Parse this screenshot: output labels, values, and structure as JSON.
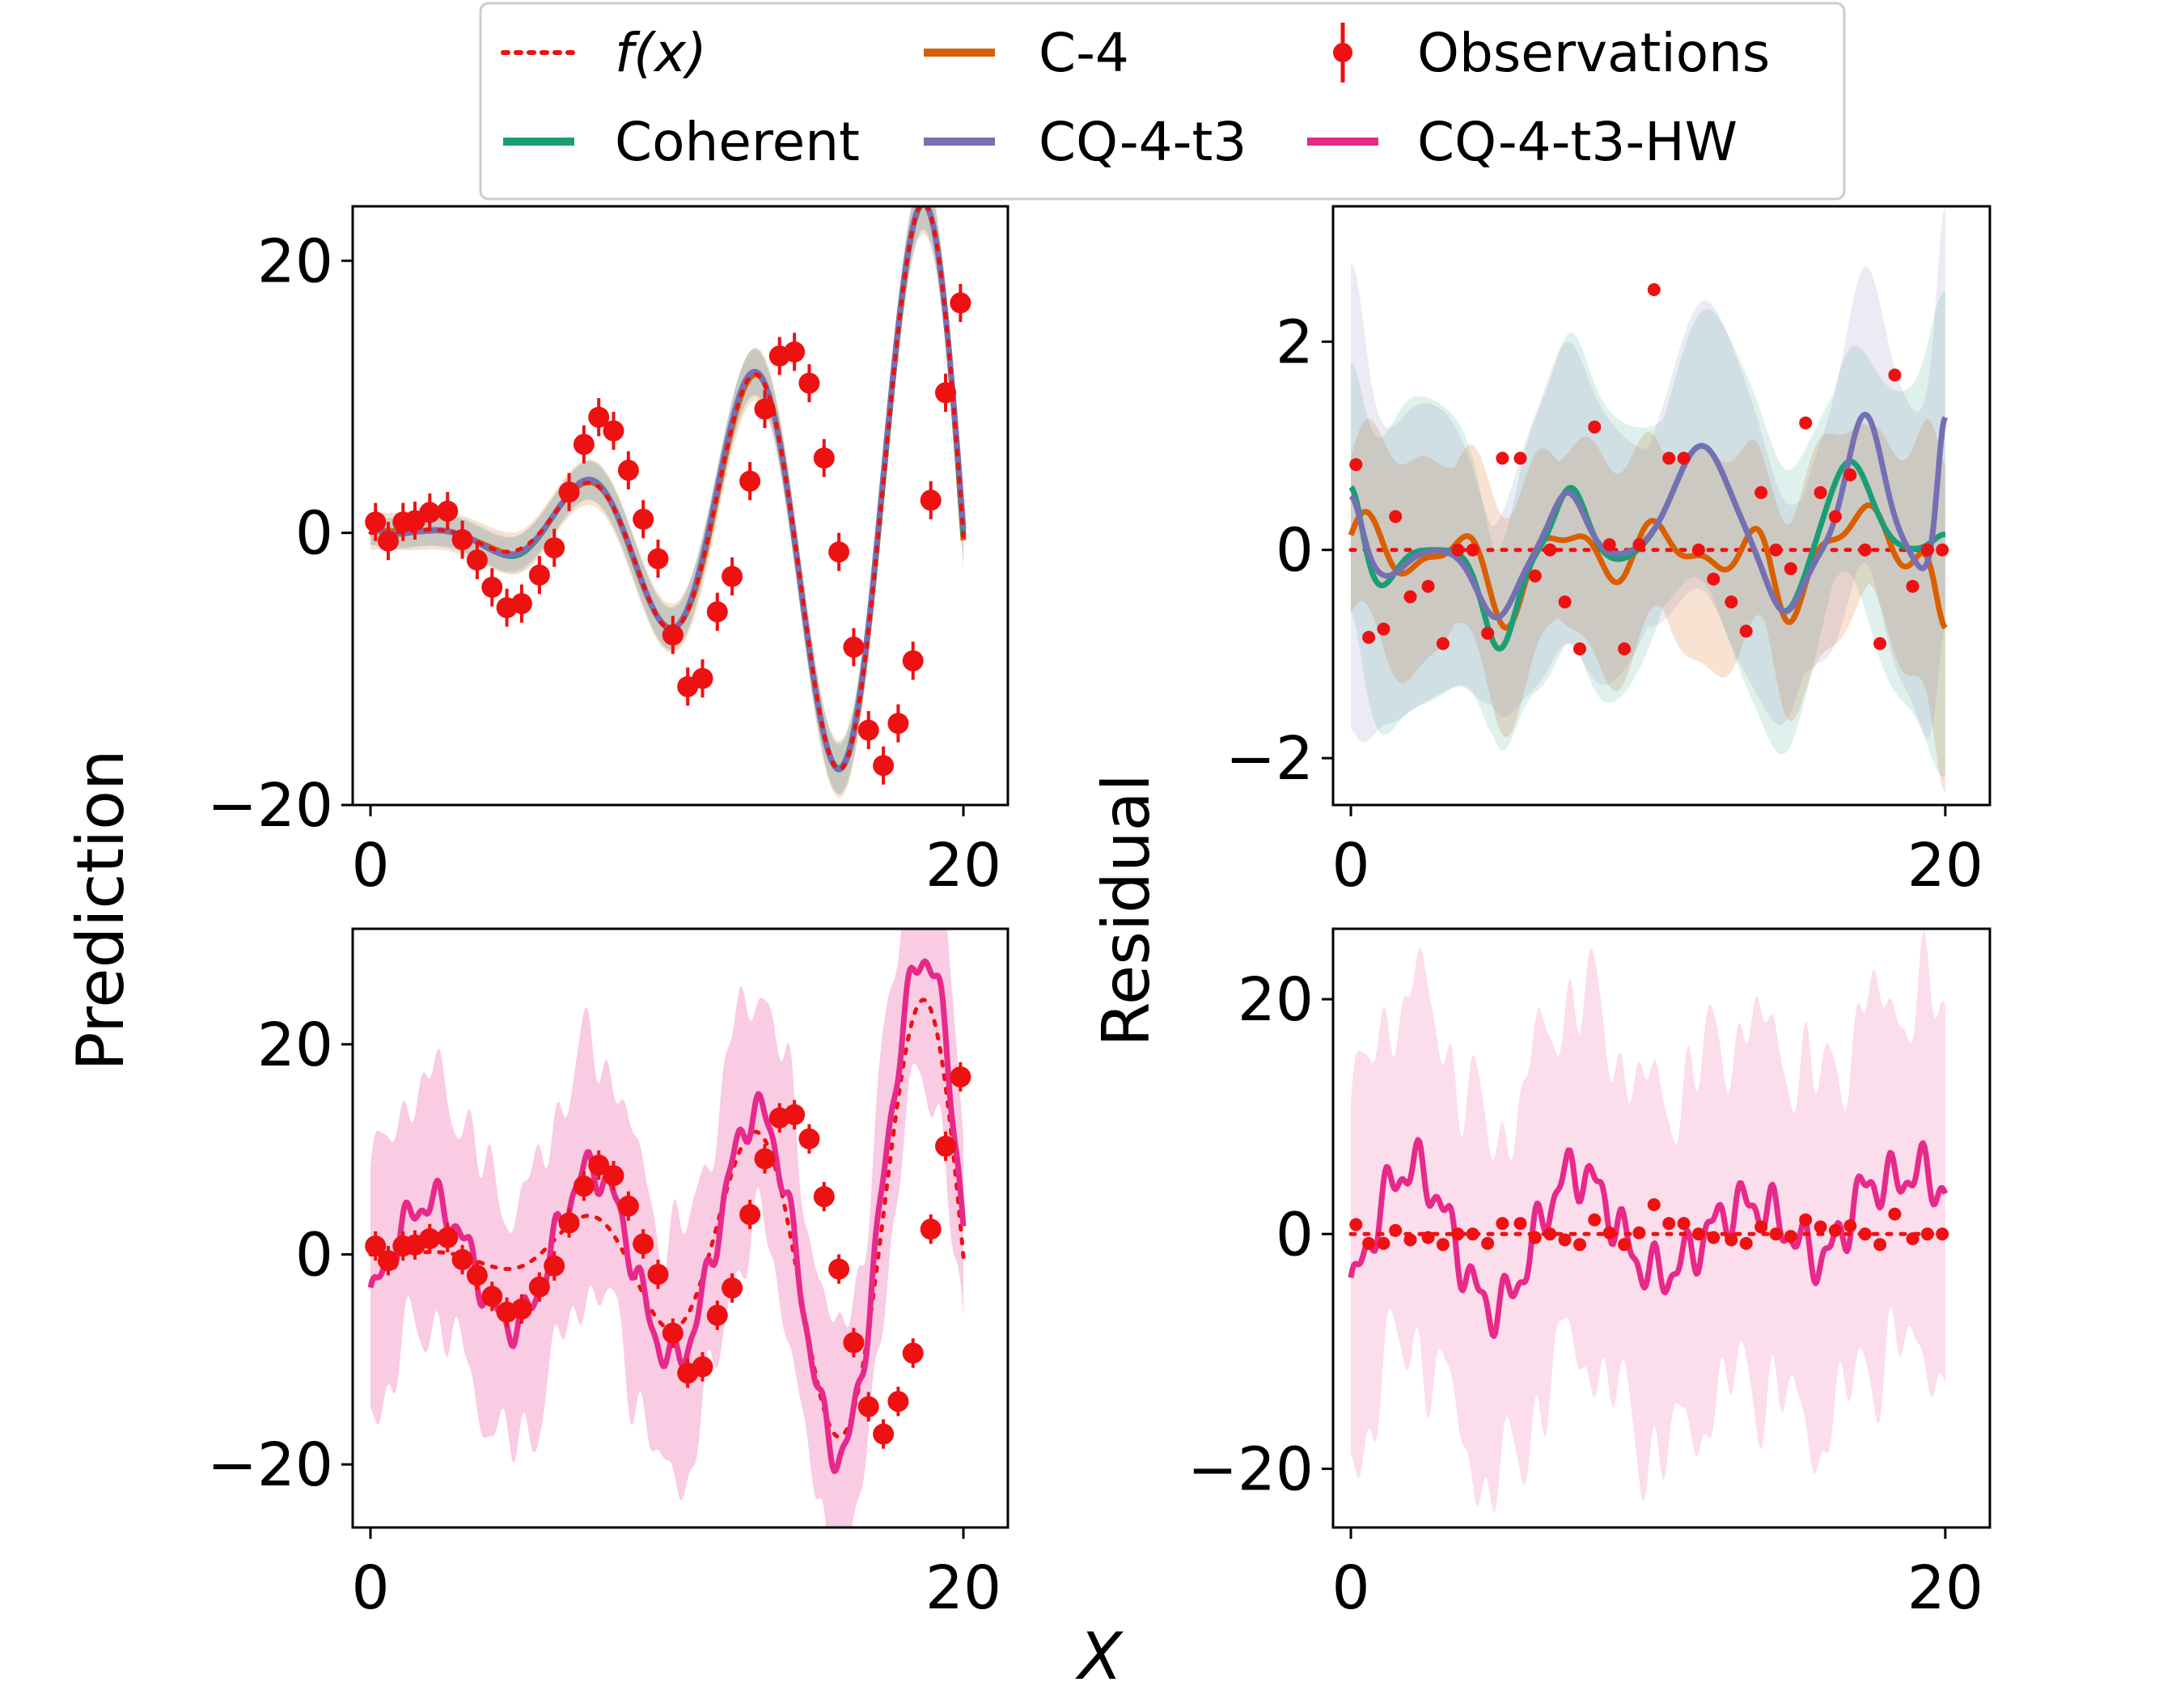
{
  "figure": {
    "ylabel_left": "Prediction",
    "ylabel_right": "Residual",
    "xlabel": "X"
  },
  "legend": {
    "items": [
      {
        "label": "f(x)",
        "kind": "dotted",
        "color": "#ee1111"
      },
      {
        "label": "C-4",
        "kind": "line",
        "color": "#d95f02"
      },
      {
        "label": "Observations",
        "kind": "errorbar",
        "color": "#ee1111"
      },
      {
        "label": "Coherent",
        "kind": "line",
        "color": "#1b9e77"
      },
      {
        "label": "CQ-4-t3",
        "kind": "line",
        "color": "#7570b3"
      },
      {
        "label": "CQ-4-t3-HW",
        "kind": "line",
        "color": "#e7298a"
      }
    ]
  },
  "chart_data": [
    {
      "id": "top-left",
      "type": "line",
      "xlim": [
        -0.6,
        21.5
      ],
      "ylim": [
        -20,
        24
      ],
      "xticks": [
        0,
        20
      ],
      "yticks": [
        -20,
        0,
        20
      ],
      "series": [
        {
          "name": "C-4",
          "color": "#d95f02",
          "band": true
        },
        {
          "name": "Coherent",
          "color": "#1b9e77",
          "band": true
        },
        {
          "name": "CQ-4-t3",
          "color": "#7570b3",
          "band": true
        }
      ],
      "truth": "f(x)",
      "observations": {
        "x": [
          0.17,
          0.6,
          1.1,
          1.5,
          2.0,
          2.6,
          3.1,
          3.6,
          4.1,
          4.6,
          5.1,
          5.7,
          6.2,
          6.7,
          7.2,
          7.7,
          8.2,
          8.7,
          9.2,
          9.7,
          10.2,
          10.7,
          11.2,
          11.7,
          12.2,
          12.8,
          13.3,
          13.8,
          14.3,
          14.8,
          15.3,
          15.8,
          16.3,
          16.8,
          17.3,
          17.8,
          18.3,
          18.9,
          19.4,
          19.9
        ],
        "y": [
          0.8,
          -0.6,
          0.8,
          0.9,
          1.5,
          1.6,
          -0.5,
          -2.0,
          -4.0,
          -5.5,
          -5.2,
          -3.1,
          -1.1,
          3.0,
          6.5,
          8.5,
          7.5,
          4.6,
          1.0,
          -1.9,
          -7.5,
          -11.3,
          -10.7,
          -5.8,
          -3.2,
          3.8,
          9.1,
          13.0,
          13.3,
          11.0,
          5.5,
          -1.4,
          -8.4,
          -14.5,
          -17.1,
          -14.0,
          -9.4,
          2.4,
          10.3,
          16.9
        ]
      }
    },
    {
      "id": "top-right",
      "type": "line",
      "xlim": [
        -0.6,
        21.5
      ],
      "ylim": [
        -2.45,
        3.3
      ],
      "xticks": [
        0,
        20
      ],
      "yticks": [
        -2,
        0,
        2
      ],
      "series": [
        {
          "name": "C-4",
          "color": "#d95f02",
          "band": true
        },
        {
          "name": "Coherent",
          "color": "#1b9e77",
          "band": true
        },
        {
          "name": "CQ-4-t3",
          "color": "#7570b3",
          "band": true
        }
      ],
      "truth": "f(x)",
      "observations": {
        "x": [
          0.17,
          0.6,
          1.1,
          1.5,
          2.0,
          2.6,
          3.1,
          3.6,
          4.1,
          4.6,
          5.1,
          5.7,
          6.2,
          6.7,
          7.2,
          7.7,
          8.2,
          8.7,
          9.2,
          9.7,
          10.2,
          10.7,
          11.2,
          11.7,
          12.2,
          12.8,
          13.3,
          13.8,
          14.3,
          14.8,
          15.3,
          15.8,
          16.3,
          16.8,
          17.3,
          17.8,
          18.3,
          18.9,
          19.4,
          19.9
        ],
        "y": [
          0.82,
          -0.84,
          -0.76,
          0.32,
          -0.45,
          -0.35,
          -0.9,
          0.0,
          0.0,
          -0.8,
          0.88,
          0.88,
          -0.25,
          0.0,
          -0.5,
          -0.95,
          1.18,
          0.05,
          -0.95,
          0.05,
          2.5,
          0.88,
          0.88,
          0.0,
          -0.28,
          -0.5,
          -0.78,
          0.55,
          0.0,
          -0.18,
          1.22,
          0.55,
          0.32,
          0.72,
          0.0,
          -0.9,
          1.68,
          -0.35,
          0.0,
          0.0
        ]
      }
    },
    {
      "id": "bottom-left",
      "type": "line",
      "xlim": [
        -0.6,
        21.5
      ],
      "ylim": [
        -26,
        31
      ],
      "xticks": [
        0,
        20
      ],
      "yticks": [
        -20,
        0,
        20
      ],
      "series": [
        {
          "name": "CQ-4-t3-HW",
          "color": "#e7298a",
          "band": true
        }
      ],
      "truth": "f(x)",
      "observations": {
        "x": [
          0.17,
          0.6,
          1.1,
          1.5,
          2.0,
          2.6,
          3.1,
          3.6,
          4.1,
          4.6,
          5.1,
          5.7,
          6.2,
          6.7,
          7.2,
          7.7,
          8.2,
          8.7,
          9.2,
          9.7,
          10.2,
          10.7,
          11.2,
          11.7,
          12.2,
          12.8,
          13.3,
          13.8,
          14.3,
          14.8,
          15.3,
          15.8,
          16.3,
          16.8,
          17.3,
          17.8,
          18.3,
          18.9,
          19.4,
          19.9
        ],
        "y": [
          0.8,
          -0.6,
          0.8,
          0.9,
          1.5,
          1.6,
          -0.5,
          -2.0,
          -4.0,
          -5.5,
          -5.2,
          -3.1,
          -1.1,
          3.0,
          6.5,
          8.5,
          7.5,
          4.6,
          1.0,
          -1.9,
          -7.5,
          -11.3,
          -10.7,
          -5.8,
          -3.2,
          3.8,
          9.1,
          13.0,
          13.3,
          11.0,
          5.5,
          -1.4,
          -8.4,
          -14.5,
          -17.1,
          -14.0,
          -9.4,
          2.4,
          10.3,
          16.9
        ]
      }
    },
    {
      "id": "bottom-right",
      "type": "line",
      "xlim": [
        -0.6,
        21.5
      ],
      "ylim": [
        -25,
        26
      ],
      "xticks": [
        0,
        20
      ],
      "yticks": [
        -20,
        0,
        20
      ],
      "series": [
        {
          "name": "CQ-4-t3-HW",
          "color": "#e7298a",
          "band": true
        }
      ],
      "truth": "zero",
      "observations": {
        "x": [
          0.17,
          0.6,
          1.1,
          1.5,
          2.0,
          2.6,
          3.1,
          3.6,
          4.1,
          4.6,
          5.1,
          5.7,
          6.2,
          6.7,
          7.2,
          7.7,
          8.2,
          8.7,
          9.2,
          9.7,
          10.2,
          10.7,
          11.2,
          11.7,
          12.2,
          12.8,
          13.3,
          13.8,
          14.3,
          14.8,
          15.3,
          15.8,
          16.3,
          16.8,
          17.3,
          17.8,
          18.3,
          18.9,
          19.4,
          19.9
        ],
        "y": [
          0.8,
          -0.8,
          -0.8,
          0.3,
          -0.5,
          -0.3,
          -0.9,
          0.0,
          0.0,
          -0.8,
          0.9,
          0.9,
          -0.3,
          0.0,
          -0.5,
          -0.9,
          1.2,
          0.1,
          -0.9,
          0.1,
          2.5,
          0.9,
          0.9,
          0.0,
          -0.3,
          -0.5,
          -0.8,
          0.6,
          0.0,
          -0.2,
          1.2,
          0.6,
          0.3,
          0.7,
          0.0,
          -0.9,
          1.7,
          -0.4,
          0.0,
          0.0
        ]
      }
    }
  ]
}
